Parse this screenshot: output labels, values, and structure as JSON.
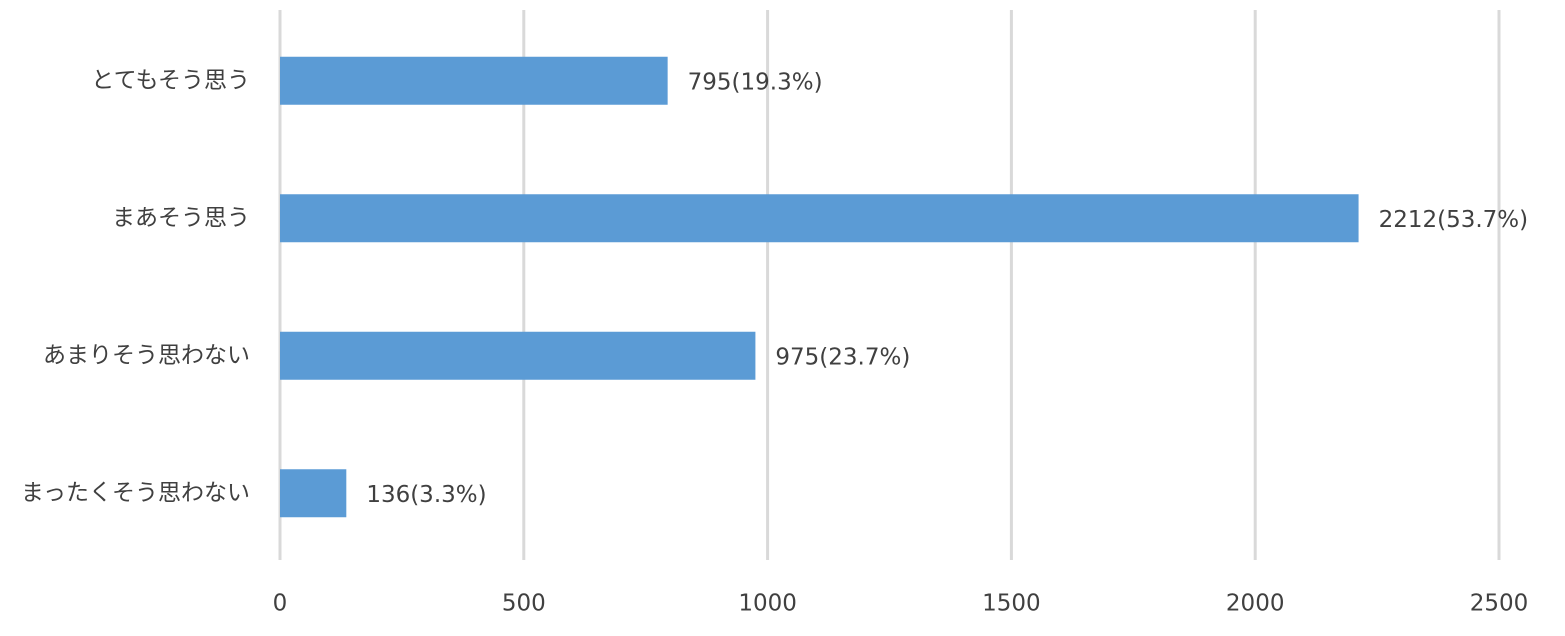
{
  "chart_data": {
    "type": "hbar",
    "categories": [
      "とてもそう思う",
      "まあそう思う",
      "あまりそう思わない",
      "まったくそう思わない"
    ],
    "values": [
      795,
      2212,
      975,
      136
    ],
    "value_labels": [
      "795(19.3%)",
      "2212(53.7%)",
      "975(23.7%)",
      "136(3.3%)"
    ],
    "color": "#5b9bd5",
    "xlim": [
      0,
      2500
    ],
    "xticks": [
      0,
      500,
      1000,
      1500,
      2000,
      2500
    ],
    "grid": true
  }
}
